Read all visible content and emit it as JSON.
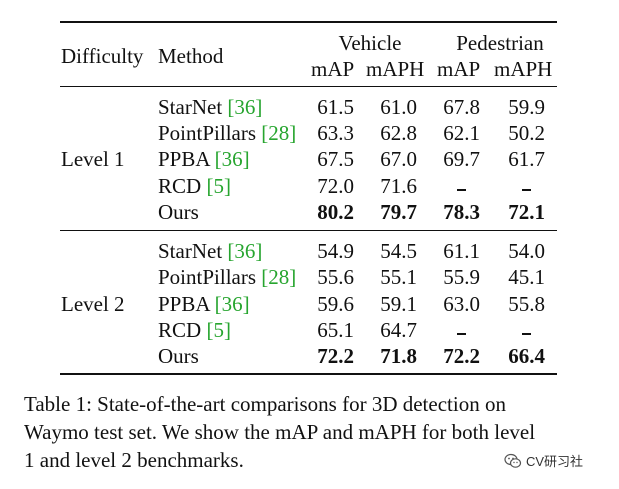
{
  "table": {
    "headers": {
      "difficulty": "Difficulty",
      "method": "Method",
      "vehicle": "Vehicle",
      "pedestrian": "Pedestrian",
      "sub": [
        "mAP",
        "mAPH",
        "mAP",
        "mAPH"
      ]
    },
    "groups": [
      {
        "label": "Level 1",
        "rows": [
          {
            "method": "StarNet",
            "cite": "36",
            "values": [
              "61.5",
              "61.0",
              "67.8",
              "59.9"
            ]
          },
          {
            "method": "PointPillars",
            "cite": "28",
            "values": [
              "63.3",
              "62.8",
              "62.1",
              "50.2"
            ]
          },
          {
            "method": "PPBA",
            "cite": "36",
            "values": [
              "67.5",
              "67.0",
              "69.7",
              "61.7"
            ]
          },
          {
            "method": "RCD",
            "cite": "5",
            "values": [
              "72.0",
              "71.6",
              "-",
              "-"
            ]
          },
          {
            "method": "Ours",
            "cite": "",
            "values": [
              "80.2",
              "79.7",
              "78.3",
              "72.1"
            ]
          }
        ]
      },
      {
        "label": "Level 2",
        "rows": [
          {
            "method": "StarNet",
            "cite": "36",
            "values": [
              "54.9",
              "54.5",
              "61.1",
              "54.0"
            ]
          },
          {
            "method": "PointPillars",
            "cite": "28",
            "values": [
              "55.6",
              "55.1",
              "55.9",
              "45.1"
            ]
          },
          {
            "method": "PPBA",
            "cite": "36",
            "values": [
              "59.6",
              "59.1",
              "63.0",
              "55.8"
            ]
          },
          {
            "method": "RCD",
            "cite": "5",
            "values": [
              "65.1",
              "64.7",
              "-",
              "-"
            ]
          },
          {
            "method": "Ours",
            "cite": "",
            "values": [
              "72.2",
              "71.8",
              "72.2",
              "66.4"
            ]
          }
        ]
      }
    ]
  },
  "caption": {
    "lines": [
      "Table 1: State-of-the-art comparisons for 3D detection on",
      "Waymo test set. We show the mAP and mAPH for both level",
      "1 and level 2 benchmarks."
    ]
  },
  "watermark": {
    "text": "CV研习社",
    "icon": "wechat-icon"
  },
  "colors": {
    "citation": "#27a52f",
    "text": "#111111"
  }
}
